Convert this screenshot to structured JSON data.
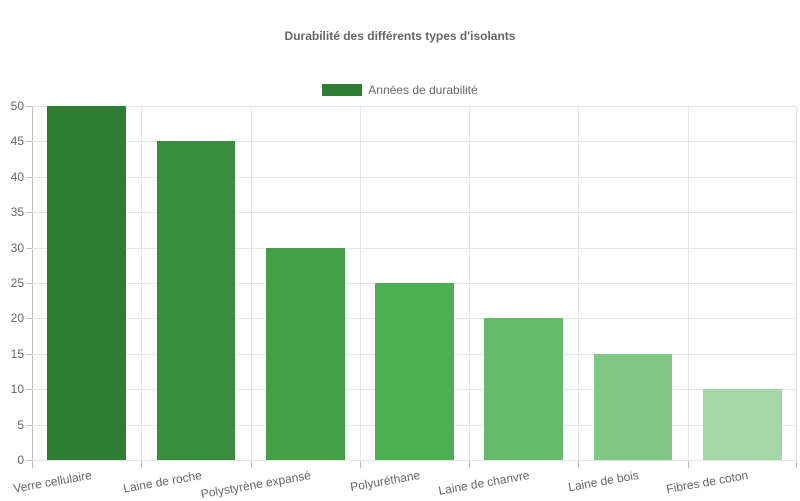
{
  "chart_data": {
    "type": "bar",
    "title": "Durabilité des différents types d'isolants",
    "xlabel": "",
    "ylabel": "",
    "ylim": [
      0,
      50
    ],
    "yticks": [
      0,
      5,
      10,
      15,
      20,
      25,
      30,
      35,
      40,
      45,
      50
    ],
    "grid": true,
    "legend_position": "top",
    "categories": [
      "Verre cellulaire",
      "Laine de roche",
      "Polystyrène expansé",
      "Polyuréthane",
      "Laine de chanvre",
      "Laine de bois",
      "Fibres de coton"
    ],
    "series": [
      {
        "name": "Années de durabilité",
        "values": [
          50,
          45,
          30,
          25,
          20,
          15,
          10
        ],
        "colors": [
          "#2e7d32",
          "#388e3c",
          "#43a047",
          "#4caf50",
          "#66bb6a",
          "#81c784",
          "#a5d6a7"
        ]
      }
    ]
  },
  "title": "Durabilité des différents types d'isolants",
  "legend": {
    "label": "Années de durabilité",
    "color": "#2e7d32"
  }
}
